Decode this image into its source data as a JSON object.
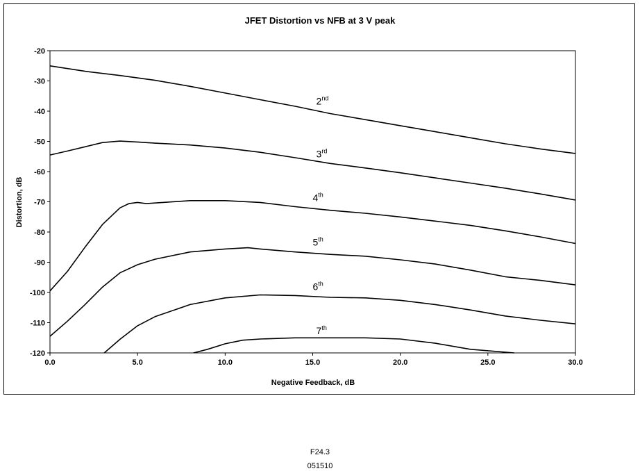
{
  "caption": {
    "figure": "F24.3",
    "date": "051510"
  },
  "chart_data": {
    "type": "line",
    "title": "JFET Distortion vs NFB at 3 V peak",
    "xlabel": "Negative Feedback, dB",
    "ylabel": "Distortion, dB",
    "xlim": [
      0,
      30
    ],
    "ylim": [
      -120,
      -20
    ],
    "xticks": [
      "0.0",
      "5.0",
      "10.0",
      "15.0",
      "20.0",
      "25.0",
      "30.0"
    ],
    "yticks": [
      "-20",
      "-30",
      "-40",
      "-50",
      "-60",
      "-70",
      "-80",
      "-90",
      "-100",
      "-110",
      "-120"
    ],
    "grid": false,
    "legend": "none",
    "series": [
      {
        "name": "2",
        "suffix": "nd",
        "label_at": [
          15.2,
          -37.8
        ],
        "points": [
          [
            0,
            -25
          ],
          [
            2,
            -26.8
          ],
          [
            4,
            -28.2
          ],
          [
            6,
            -29.8
          ],
          [
            8,
            -31.8
          ],
          [
            10,
            -34
          ],
          [
            12,
            -36.2
          ],
          [
            14,
            -38.4
          ],
          [
            16,
            -40.8
          ],
          [
            18,
            -42.8
          ],
          [
            20,
            -44.8
          ],
          [
            22,
            -46.8
          ],
          [
            24,
            -48.8
          ],
          [
            26,
            -50.8
          ],
          [
            28,
            -52.5
          ],
          [
            30,
            -54
          ]
        ]
      },
      {
        "name": "3",
        "suffix": "rd",
        "label_at": [
          15.2,
          -55.3
        ],
        "points": [
          [
            0,
            -54.5
          ],
          [
            1,
            -53.2
          ],
          [
            2,
            -51.8
          ],
          [
            3,
            -50.4
          ],
          [
            4,
            -49.9
          ],
          [
            5,
            -50.2
          ],
          [
            6,
            -50.6
          ],
          [
            8,
            -51.2
          ],
          [
            10,
            -52.2
          ],
          [
            12,
            -53.6
          ],
          [
            14,
            -55.4
          ],
          [
            16,
            -57.3
          ],
          [
            18,
            -58.8
          ],
          [
            20,
            -60.4
          ],
          [
            22,
            -62.1
          ],
          [
            24,
            -63.8
          ],
          [
            26,
            -65.5
          ],
          [
            28,
            -67.4
          ],
          [
            30,
            -69.4
          ]
        ]
      },
      {
        "name": "4",
        "suffix": "th",
        "label_at": [
          15.0,
          -69.8
        ],
        "points": [
          [
            0,
            -99.5
          ],
          [
            1,
            -93
          ],
          [
            2,
            -85
          ],
          [
            3,
            -77.5
          ],
          [
            4,
            -72
          ],
          [
            4.5,
            -70.6
          ],
          [
            5,
            -70.2
          ],
          [
            5.5,
            -70.6
          ],
          [
            6,
            -70.4
          ],
          [
            8,
            -69.6
          ],
          [
            10,
            -69.6
          ],
          [
            12,
            -70.2
          ],
          [
            14,
            -71.6
          ],
          [
            16,
            -72.8
          ],
          [
            18,
            -73.8
          ],
          [
            20,
            -75
          ],
          [
            22,
            -76.4
          ],
          [
            24,
            -77.8
          ],
          [
            26,
            -79.6
          ],
          [
            28,
            -81.6
          ],
          [
            30,
            -83.8
          ]
        ]
      },
      {
        "name": "5",
        "suffix": "th",
        "label_at": [
          15.0,
          -84.5
        ],
        "points": [
          [
            0,
            -114.5
          ],
          [
            1,
            -109.5
          ],
          [
            2,
            -104
          ],
          [
            3,
            -98.2
          ],
          [
            4,
            -93.5
          ],
          [
            5,
            -90.8
          ],
          [
            6,
            -89
          ],
          [
            8,
            -86.6
          ],
          [
            10,
            -85.6
          ],
          [
            11.3,
            -85.2
          ],
          [
            12,
            -85.6
          ],
          [
            14,
            -86.6
          ],
          [
            16,
            -87.4
          ],
          [
            18,
            -88
          ],
          [
            20,
            -89.2
          ],
          [
            22,
            -90.6
          ],
          [
            24,
            -92.6
          ],
          [
            26,
            -94.8
          ],
          [
            28,
            -96
          ],
          [
            30,
            -97.5
          ]
        ]
      },
      {
        "name": "6",
        "suffix": "th",
        "label_at": [
          15.0,
          -99.2
        ],
        "points": [
          [
            3.1,
            -120
          ],
          [
            4,
            -115.5
          ],
          [
            5,
            -111
          ],
          [
            6,
            -108
          ],
          [
            8,
            -104
          ],
          [
            10,
            -101.8
          ],
          [
            12,
            -100.8
          ],
          [
            14,
            -101
          ],
          [
            16,
            -101.6
          ],
          [
            18,
            -101.8
          ],
          [
            20,
            -102.6
          ],
          [
            22,
            -104
          ],
          [
            24,
            -105.8
          ],
          [
            26,
            -107.8
          ],
          [
            28,
            -109.2
          ],
          [
            30,
            -110.4
          ]
        ]
      },
      {
        "name": "7",
        "suffix": "th",
        "label_at": [
          15.2,
          -113.8
        ],
        "points": [
          [
            8.2,
            -120
          ],
          [
            9,
            -118.8
          ],
          [
            10,
            -117
          ],
          [
            11,
            -115.8
          ],
          [
            12,
            -115.4
          ],
          [
            14,
            -115
          ],
          [
            18,
            -115
          ],
          [
            20,
            -115.4
          ],
          [
            22,
            -116.8
          ],
          [
            24,
            -118.8
          ],
          [
            26.5,
            -120
          ]
        ]
      }
    ]
  }
}
